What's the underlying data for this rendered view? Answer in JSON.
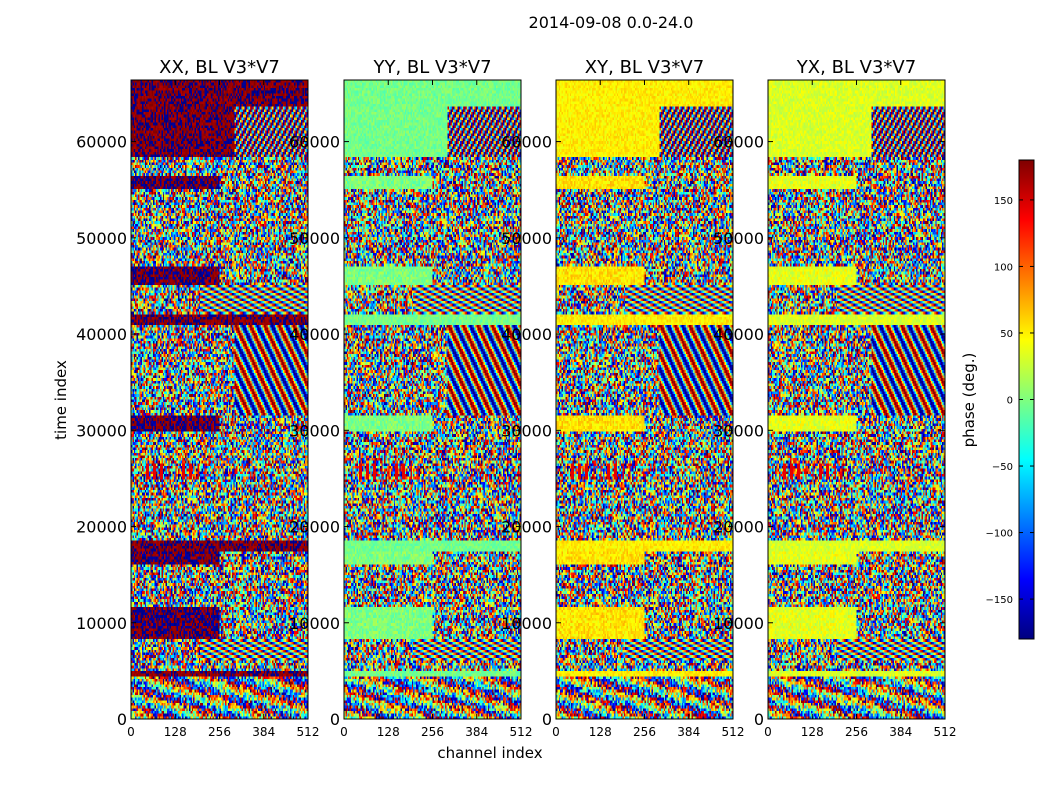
{
  "chart_data": {
    "type": "heatmap",
    "suptitle": "2014-09-08 0.0-24.0",
    "xlabel": "channel index",
    "ylabel": "time index",
    "xlim": [
      0,
      512
    ],
    "ylim": [
      0,
      66400
    ],
    "xticks": [
      0,
      128,
      256,
      384,
      512
    ],
    "yticks": [
      0,
      10000,
      20000,
      30000,
      40000,
      50000,
      60000
    ],
    "panels": [
      {
        "name": "xx",
        "title": "XX, BL V3*V7"
      },
      {
        "name": "yy",
        "title": "YY, BL V3*V7"
      },
      {
        "name": "xy",
        "title": "XY, BL V3*V7"
      },
      {
        "name": "yx",
        "title": "YX, BL V3*V7"
      }
    ],
    "colorbar": {
      "label": "phase (deg.)",
      "range": [
        -180,
        180
      ],
      "ticks": [
        -150,
        -100,
        -50,
        0,
        50,
        100,
        150
      ],
      "tick_labels": [
        "−150",
        "−100",
        "−50",
        "0",
        "50",
        "100",
        "150"
      ],
      "colormap": "jet",
      "colormap_stops": [
        "#00007f",
        "#0000ff",
        "#007fff",
        "#00ffff",
        "#7fff7f",
        "#ffff00",
        "#ff7f00",
        "#ff0000",
        "#7f0000"
      ]
    }
  }
}
